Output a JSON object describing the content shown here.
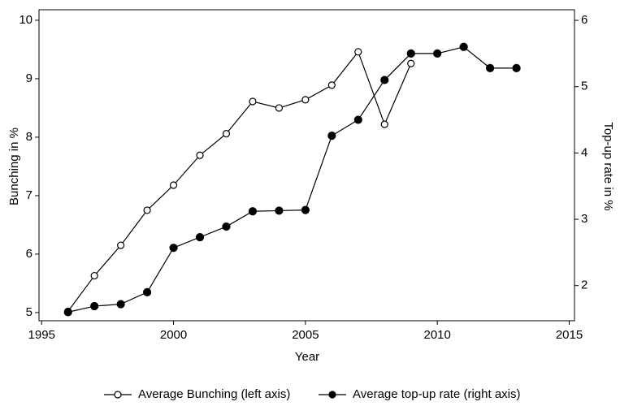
{
  "chart_data": {
    "type": "line",
    "x": [
      1996,
      1997,
      1998,
      1999,
      2000,
      2001,
      2002,
      2003,
      2004,
      2005,
      2006,
      2007,
      2008,
      2009,
      2010,
      2011,
      2012,
      2013
    ],
    "xlabel": "Year",
    "ylabel": "Bunching in %",
    "y2label": "Top-up rate in %",
    "xlim": [
      1994.9,
      2015.2
    ],
    "xticks": [
      1995,
      2000,
      2005,
      2010,
      2015
    ],
    "ylim": [
      4.86,
      10.18
    ],
    "yticks": [
      5,
      6,
      7,
      8,
      9,
      10
    ],
    "y2lim": [
      1.47,
      6.16
    ],
    "y2ticks": [
      2,
      3,
      4,
      5,
      6
    ],
    "series": [
      {
        "name": "Average Bunching (left axis)",
        "color": "#000000",
        "marker": "open",
        "values": [
          5.02,
          5.63,
          6.15,
          6.75,
          7.18,
          7.69,
          8.06,
          8.61,
          8.5,
          8.64,
          8.89,
          9.46,
          8.22,
          9.26,
          null,
          null,
          null,
          null
        ]
      },
      {
        "name": "Average top-up rate (right axis)",
        "color": "#000000",
        "marker": "filled",
        "axis": "y2",
        "values": [
          1.6,
          1.69,
          1.72,
          1.9,
          2.57,
          2.73,
          2.89,
          3.12,
          3.13,
          3.14,
          4.26,
          4.5,
          5.1,
          5.5,
          5.5,
          5.6,
          5.28,
          5.28
        ]
      }
    ]
  }
}
